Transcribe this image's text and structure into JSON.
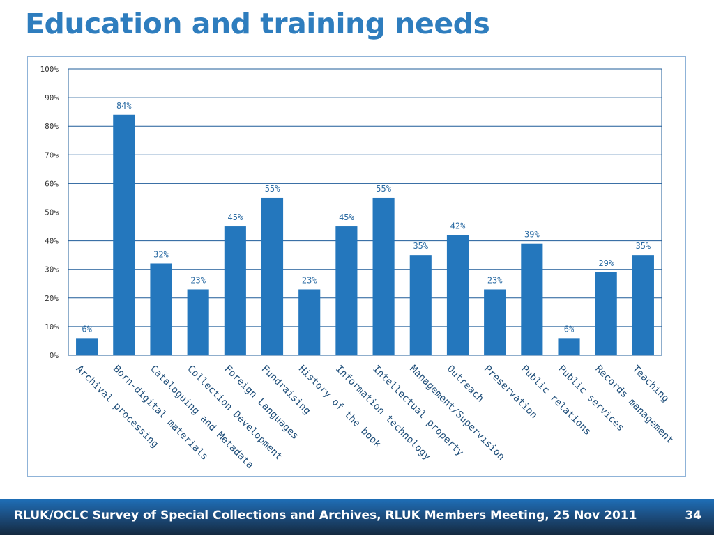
{
  "title": "Education and training needs",
  "footer": {
    "text": "RLUK/OCLC Survey of Special Collections and Archives, RLUK Members Meeting, 25 Nov 2011",
    "page_number": "34"
  },
  "colors": {
    "bar": "#2477bd",
    "grid": "#1f5c99",
    "title": "#2e7dbe",
    "label": "#2e6da4"
  },
  "chart_data": {
    "type": "bar",
    "title": "",
    "xlabel": "",
    "ylabel": "",
    "ylim": [
      0,
      100
    ],
    "y_ticks": [
      "0%",
      "10%",
      "20%",
      "30%",
      "40%",
      "50%",
      "60%",
      "70%",
      "80%",
      "90%",
      "100%"
    ],
    "grid": true,
    "legend": "none",
    "categories": [
      "Archival processing",
      "Born-digital materials",
      "Cataloguing and Metadata",
      "Collection Development",
      "Foreign Languages",
      "Fundraising",
      "History of the book",
      "Information technology",
      "Intellectual property",
      "Management/Supervision",
      "Outreach",
      "Preservation",
      "Public relations",
      "Public services",
      "Records management",
      "Teaching"
    ],
    "values": [
      6,
      84,
      32,
      23,
      45,
      55,
      23,
      45,
      55,
      35,
      42,
      23,
      39,
      6,
      29,
      35
    ],
    "display_values": [
      6,
      84,
      32,
      23,
      45,
      55,
      23,
      45,
      55,
      35,
      42,
      23,
      39,
      6,
      29,
      35
    ],
    "data_labels": [
      "6%",
      "84%",
      "32%",
      "23%",
      "45%",
      "55%",
      "23%",
      "45%",
      "55%",
      "35%",
      "42%",
      "23%",
      "39%",
      "6%",
      "29%",
      "35%"
    ]
  }
}
